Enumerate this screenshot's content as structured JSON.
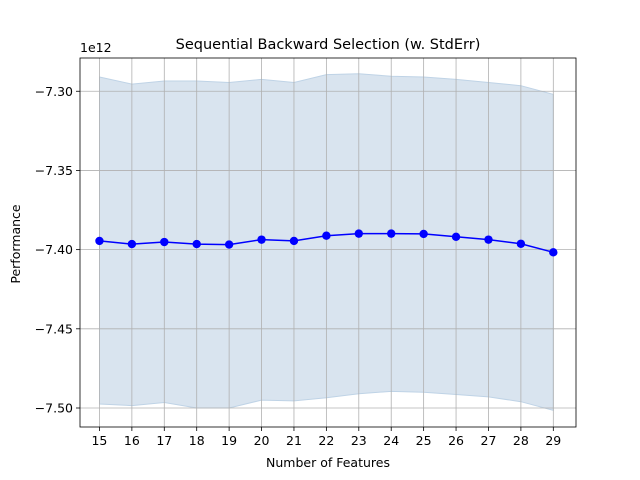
{
  "chart_data": {
    "type": "line",
    "title": "Sequential Backward Selection (w. StdErr)",
    "xlabel": "Number of Features",
    "ylabel": "Performance",
    "y_offset_label": "1e12",
    "x_ticks": [
      15,
      16,
      17,
      18,
      19,
      20,
      21,
      22,
      23,
      24,
      25,
      26,
      27,
      28,
      29
    ],
    "y_ticks": [
      -7.3,
      -7.35,
      -7.4,
      -7.45,
      -7.5
    ],
    "y_tick_labels": [
      "−7.30",
      "−7.35",
      "−7.40",
      "−7.45",
      "−7.50"
    ],
    "ylim": [
      -7.512,
      -7.279
    ],
    "xlim": [
      14.4,
      29.7
    ],
    "grid": true,
    "colors": {
      "line": "#0000ff",
      "band": "#c9d9e8",
      "band_edge": "#bfd3e6",
      "grid": "#b0b0b0"
    },
    "series": [
      {
        "x": [
          15,
          16,
          17,
          18,
          19,
          20,
          21,
          22,
          23,
          24,
          25,
          26,
          27,
          28,
          29
        ],
        "values": [
          -7.3945,
          -7.3965,
          -7.3952,
          -7.3965,
          -7.3968,
          -7.3937,
          -7.3945,
          -7.3912,
          -7.3899,
          -7.3899,
          -7.3901,
          -7.3919,
          -7.3937,
          -7.3963,
          -7.4017
        ],
        "upper": [
          -7.291,
          -7.2955,
          -7.2935,
          -7.2935,
          -7.2945,
          -7.2925,
          -7.2945,
          -7.2895,
          -7.289,
          -7.2905,
          -7.291,
          -7.2925,
          -7.2945,
          -7.2965,
          -7.302
        ],
        "lower": [
          -7.4975,
          -7.4985,
          -7.4965,
          -7.5,
          -7.5,
          -7.495,
          -7.4955,
          -7.4935,
          -7.491,
          -7.4895,
          -7.49,
          -7.4915,
          -7.493,
          -7.496,
          -7.5015
        ]
      }
    ]
  }
}
